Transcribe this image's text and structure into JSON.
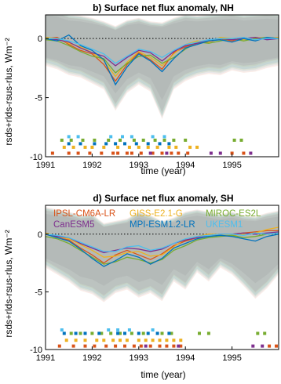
{
  "chart_data": [
    {
      "type": "line",
      "title": "b) Surface net flux anomaly, NH",
      "xlabel": "time (year)",
      "ylabel": "rsds+rlds-rsus-rlus, Wm⁻²",
      "xlim": [
        1991.0,
        1996.0
      ],
      "ylim": [
        -10,
        2
      ],
      "xticks": [
        "1991",
        "1992",
        "1993",
        "1994",
        "1995"
      ],
      "yticks": [
        "0",
        "-5",
        "-10"
      ],
      "zero_line": "dotted",
      "grid": false,
      "envelope": {
        "x": [
          1991.0,
          1991.25,
          1991.5,
          1991.75,
          1992.0,
          1992.25,
          1992.5,
          1992.75,
          1993.0,
          1993.25,
          1993.5,
          1993.75,
          1994.0,
          1994.25,
          1994.5,
          1994.75,
          1995.0,
          1995.25,
          1995.5,
          1995.75,
          1996.0
        ],
        "upper": [
          2.5,
          2.3,
          1.9,
          1.8,
          1.6,
          1.3,
          0.9,
          1.4,
          1.6,
          1.3,
          1.2,
          1.6,
          1.9,
          1.8,
          1.9,
          2.0,
          2.1,
          1.9,
          2.0,
          2.1,
          2.0
        ],
        "lower": [
          -2.0,
          -2.3,
          -2.8,
          -3.0,
          -3.5,
          -4.0,
          -5.8,
          -4.3,
          -3.6,
          -4.2,
          -6.5,
          -4.0,
          -3.3,
          -2.9,
          -2.7,
          -2.8,
          -2.4,
          -2.6,
          -2.5,
          -2.2,
          -2.0
        ]
      },
      "series": [
        {
          "name": "IPSL-CM6A-LR",
          "color": "#d95319",
          "x": [
            1991.0,
            1991.25,
            1991.5,
            1991.75,
            1992.0,
            1992.25,
            1992.5,
            1992.75,
            1993.0,
            1993.25,
            1993.5,
            1993.75,
            1994.0,
            1994.25,
            1994.5,
            1994.75,
            1995.0,
            1995.25,
            1995.5,
            1995.75,
            1996.0
          ],
          "y": [
            0.0,
            0.1,
            -0.5,
            -1.0,
            -1.3,
            -2.2,
            -3.6,
            -2.2,
            -1.2,
            -1.8,
            -2.6,
            -1.2,
            -0.7,
            -0.4,
            -0.3,
            0.0,
            -0.2,
            0.1,
            -0.1,
            0.0,
            0.1
          ]
        },
        {
          "name": "GISS-E2.1-G",
          "color": "#edb120",
          "x": [
            1991.0,
            1991.25,
            1991.5,
            1991.75,
            1992.0,
            1992.25,
            1992.5,
            1992.75,
            1993.0,
            1993.25,
            1993.5,
            1993.75,
            1994.0,
            1994.25,
            1994.5,
            1994.75,
            1995.0,
            1995.25,
            1995.5,
            1995.75,
            1996.0
          ],
          "y": [
            0.1,
            0.0,
            -0.4,
            -0.7,
            -1.2,
            -1.9,
            -3.2,
            -2.0,
            -1.1,
            -1.6,
            -2.3,
            -1.3,
            -0.5,
            -0.2,
            -0.3,
            0.1,
            0.0,
            -0.1,
            0.1,
            0.0,
            0.1
          ]
        },
        {
          "name": "MIROC-ES2L",
          "color": "#77ac30",
          "x": [
            1991.0,
            1991.25,
            1991.5,
            1991.75,
            1992.0,
            1992.25,
            1992.5,
            1992.75,
            1993.0,
            1993.25,
            1993.5,
            1993.75,
            1994.0,
            1994.25,
            1994.5,
            1994.75,
            1995.0,
            1995.25,
            1995.5,
            1995.75,
            1996.0
          ],
          "y": [
            -0.1,
            -0.2,
            -0.6,
            -1.1,
            -1.5,
            -1.7,
            -2.9,
            -2.1,
            -1.5,
            -1.4,
            -2.1,
            -1.6,
            -0.9,
            -0.3,
            -0.4,
            -0.2,
            0.0,
            -0.2,
            0.0,
            0.1,
            0.0
          ]
        },
        {
          "name": "CanESM5",
          "color": "#7e2f8e",
          "x": [
            1991.0,
            1991.25,
            1991.5,
            1991.75,
            1992.0,
            1992.25,
            1992.5,
            1992.75,
            1993.0,
            1993.25,
            1993.5,
            1993.75,
            1994.0,
            1994.25,
            1994.5,
            1994.75,
            1995.0,
            1995.25,
            1995.5,
            1995.75,
            1996.0
          ],
          "y": [
            0.0,
            -0.1,
            -0.3,
            -0.8,
            -1.2,
            -1.5,
            -2.3,
            -1.6,
            -1.0,
            -1.2,
            -1.9,
            -1.1,
            -0.6,
            -0.4,
            -0.1,
            0.0,
            -0.1,
            0.0,
            0.1,
            -0.1,
            0.0
          ]
        },
        {
          "name": "MPI-ESM1.2-LR",
          "color": "#0072bd",
          "x": [
            1991.0,
            1991.25,
            1991.5,
            1991.75,
            1992.0,
            1992.25,
            1992.5,
            1992.75,
            1993.0,
            1993.25,
            1993.5,
            1993.75,
            1994.0,
            1994.25,
            1994.5,
            1994.75,
            1995.0,
            1995.25,
            1995.5,
            1995.75,
            1996.0
          ],
          "y": [
            0.0,
            -0.2,
            0.3,
            -0.6,
            -1.0,
            -1.8,
            -3.9,
            -2.4,
            -1.3,
            -1.9,
            -2.8,
            -1.7,
            -0.8,
            -0.5,
            -0.2,
            -0.1,
            -0.3,
            0.0,
            -0.2,
            0.1,
            0.0
          ]
        },
        {
          "name": "UKESM1",
          "color": "#4dbeee",
          "x": [
            1991.0,
            1991.25,
            1991.5,
            1991.75,
            1992.0,
            1992.25,
            1992.5,
            1992.75,
            1993.0,
            1993.25,
            1993.5,
            1993.75,
            1994.0,
            1994.25,
            1994.5,
            1994.75,
            1995.0,
            1995.25,
            1995.5,
            1995.75,
            1996.0
          ],
          "y": [
            0.0,
            0.0,
            -0.2,
            -0.5,
            -0.9,
            -1.3,
            -2.1,
            -1.5,
            -0.9,
            -1.1,
            -1.6,
            -1.0,
            -0.5,
            -0.3,
            -0.1,
            0.0,
            0.0,
            0.1,
            -0.1,
            0.0,
            0.0
          ]
        }
      ],
      "markers": [
        {
          "model": "IPSL-CM6A-LR",
          "y": -9.7,
          "x": [
            1991.15,
            1991.5,
            1991.7,
            1991.95,
            1992.2,
            1992.45,
            1992.55,
            1992.75,
            1992.85,
            1993.05,
            1993.3,
            1993.5,
            1993.7,
            1993.85,
            1994.05,
            1995.0,
            1995.25
          ]
        },
        {
          "model": "GISS-E2.1-G",
          "y": -9.2,
          "x": [
            1991.4,
            1991.6,
            1991.85,
            1992.0,
            1992.25,
            1992.55,
            1992.8,
            1993.0,
            1993.2,
            1993.4,
            1993.65,
            1993.8,
            1994.1,
            1994.25
          ]
        },
        {
          "model": "MIROC-ES2L",
          "y": -8.6,
          "x": [
            1991.35,
            1991.55,
            1991.8,
            1992.05,
            1992.35,
            1992.6,
            1992.9,
            1993.1,
            1993.35,
            1993.55,
            1993.75,
            1994.0,
            1995.05,
            1995.2
          ]
        },
        {
          "model": "CanESM5",
          "y": -9.7,
          "x": [
            1993.25,
            1993.6,
            1994.55,
            1994.75,
            1995.4
          ]
        },
        {
          "model": "MPI-ESM1.2-LR",
          "y": -8.9,
          "x": [
            1991.5,
            1991.75,
            1992.05,
            1992.3,
            1992.5,
            1992.7,
            1992.95,
            1993.2,
            1993.45,
            1993.65
          ]
        },
        {
          "model": "UKESM1",
          "y": -8.3,
          "x": [
            1991.5,
            1991.7,
            1992.4,
            1992.65,
            1992.85,
            1993.3,
            1993.55
          ]
        }
      ]
    },
    {
      "type": "line",
      "title": "d) Surface net flux anomaly, SH",
      "xlabel": "time (year)",
      "ylabel": "rsds+rlds-rsus-rlus, Wm⁻²",
      "xlim": [
        1991.0,
        1996.0
      ],
      "ylim": [
        -10,
        2.5
      ],
      "xticks": [
        "1991",
        "1992",
        "1993",
        "1994",
        "1995"
      ],
      "yticks": [
        "0",
        "-5",
        "-10"
      ],
      "zero_line": "dotted",
      "grid": false,
      "legend": {
        "placement": "top",
        "columns": 3
      },
      "envelope": {
        "x": [
          1991.0,
          1991.25,
          1991.5,
          1991.75,
          1992.0,
          1992.25,
          1992.5,
          1992.75,
          1993.0,
          1993.25,
          1993.5,
          1993.75,
          1994.0,
          1994.25,
          1994.5,
          1994.75,
          1995.0,
          1995.25,
          1995.5,
          1995.75,
          1996.0
        ],
        "upper": [
          2.2,
          2.0,
          1.8,
          1.5,
          1.6,
          0.8,
          1.0,
          1.2,
          1.8,
          1.5,
          1.0,
          1.3,
          1.8,
          2.0,
          1.8,
          1.6,
          1.8,
          1.5,
          1.4,
          1.7,
          1.9
        ],
        "lower": [
          -2.6,
          -3.2,
          -3.8,
          -4.6,
          -4.9,
          -5.6,
          -4.8,
          -4.5,
          -5.2,
          -4.8,
          -5.5,
          -3.8,
          -4.5,
          -3.0,
          -3.8,
          -2.6,
          -3.2,
          -4.2,
          -5.3,
          -4.4,
          -3.2
        ]
      },
      "series": [
        {
          "name": "IPSL-CM6A-LR",
          "color": "#d95319",
          "x": [
            1991.0,
            1991.25,
            1991.5,
            1991.75,
            1992.0,
            1992.25,
            1992.5,
            1992.75,
            1993.0,
            1993.25,
            1993.5,
            1993.75,
            1994.0,
            1994.25,
            1994.5,
            1994.75,
            1995.0,
            1995.25,
            1995.5,
            1995.75,
            1996.0
          ],
          "y": [
            0.0,
            -0.3,
            -0.5,
            -1.2,
            -1.8,
            -2.5,
            -1.8,
            -1.4,
            -1.8,
            -2.2,
            -1.7,
            -1.0,
            -0.6,
            -0.3,
            0.0,
            -0.1,
            0.0,
            0.1,
            0.2,
            0.3,
            0.3
          ]
        },
        {
          "name": "GISS-E2.1-G",
          "color": "#edb120",
          "x": [
            1991.0,
            1991.25,
            1991.5,
            1991.75,
            1992.0,
            1992.25,
            1992.5,
            1992.75,
            1993.0,
            1993.25,
            1993.5,
            1993.75,
            1994.0,
            1994.25,
            1994.5,
            1994.75,
            1995.0,
            1995.25,
            1995.5,
            1995.75,
            1996.0
          ],
          "y": [
            0.1,
            -0.2,
            -0.4,
            -0.9,
            -1.4,
            -2.0,
            -1.9,
            -1.6,
            -1.5,
            -1.9,
            -1.8,
            -1.1,
            -0.4,
            -0.2,
            0.0,
            0.0,
            -0.1,
            0.0,
            0.1,
            0.4,
            0.6
          ]
        },
        {
          "name": "MIROC-ES2L",
          "color": "#77ac30",
          "x": [
            1991.0,
            1991.25,
            1991.5,
            1991.75,
            1992.0,
            1992.25,
            1992.5,
            1992.75,
            1993.0,
            1993.25,
            1993.5,
            1993.75,
            1994.0,
            1994.25,
            1994.5,
            1994.75,
            1995.0,
            1995.25,
            1995.5,
            1995.75,
            1996.0
          ],
          "y": [
            -0.2,
            -0.4,
            -0.8,
            -1.4,
            -2.0,
            -2.6,
            -2.4,
            -2.0,
            -2.2,
            -2.5,
            -2.2,
            -1.4,
            -1.0,
            -0.5,
            -0.3,
            -0.2,
            -0.1,
            -0.3,
            -0.2,
            0.0,
            0.1
          ]
        },
        {
          "name": "CanESM5",
          "color": "#7e2f8e",
          "x": [
            1991.0,
            1991.25,
            1991.5,
            1991.75,
            1992.0,
            1992.25,
            1992.5,
            1992.75,
            1993.0,
            1993.25,
            1993.5,
            1993.75,
            1994.0,
            1994.25,
            1994.5,
            1994.75,
            1995.0,
            1995.25,
            1995.5,
            1995.75,
            1996.0
          ],
          "y": [
            0.0,
            -0.2,
            -0.3,
            -0.8,
            -1.2,
            -1.6,
            -1.4,
            -1.2,
            -1.3,
            -1.5,
            -1.3,
            -0.8,
            -0.5,
            -0.3,
            -0.1,
            0.0,
            0.0,
            0.1,
            0.0,
            0.1,
            0.2
          ]
        },
        {
          "name": "MPI-ESM1.2-LR",
          "color": "#0072bd",
          "x": [
            1991.0,
            1991.25,
            1991.5,
            1991.75,
            1992.0,
            1992.25,
            1992.5,
            1992.75,
            1993.0,
            1993.25,
            1993.5,
            1993.75,
            1994.0,
            1994.25,
            1994.5,
            1994.75,
            1995.0,
            1995.25,
            1995.5,
            1995.75,
            1996.0
          ],
          "y": [
            0.0,
            -0.3,
            -0.6,
            -1.3,
            -2.1,
            -2.8,
            -2.3,
            -1.7,
            -2.0,
            -2.6,
            -2.1,
            -1.2,
            -0.8,
            -0.4,
            -0.2,
            -0.1,
            -0.2,
            -0.4,
            -0.6,
            -0.2,
            0.0
          ]
        },
        {
          "name": "UKESM1",
          "color": "#4dbeee",
          "x": [
            1991.0,
            1991.25,
            1991.5,
            1991.75,
            1992.0,
            1992.25,
            1992.5,
            1992.75,
            1993.0,
            1993.25,
            1993.5,
            1993.75,
            1994.0,
            1994.25,
            1994.5,
            1994.75,
            1995.0,
            1995.25,
            1995.5,
            1995.75,
            1996.0
          ],
          "y": [
            0.0,
            -0.1,
            -0.3,
            -0.7,
            -1.1,
            -1.5,
            -1.5,
            -1.1,
            -1.0,
            -1.4,
            -1.2,
            -0.8,
            -0.4,
            -0.2,
            -0.1,
            0.0,
            0.0,
            -0.1,
            0.1,
            0.0,
            0.1
          ]
        }
      ],
      "markers": [
        {
          "model": "IPSL-CM6A-LR",
          "y": -9.7,
          "x": [
            1991.3,
            1991.6,
            1991.85,
            1992.05,
            1992.3,
            1992.5,
            1992.7,
            1992.9,
            1993.05,
            1993.25,
            1993.45,
            1993.6,
            1993.75,
            1993.9,
            1995.8,
            1995.95
          ]
        },
        {
          "model": "GISS-E2.1-G",
          "y": -9.2,
          "x": [
            1991.45,
            1991.65,
            1991.85,
            1992.1,
            1992.25,
            1992.45,
            1992.6,
            1992.75,
            1993.0,
            1993.15,
            1993.3,
            1993.45,
            1993.6,
            1993.75,
            1993.9
          ]
        },
        {
          "model": "MIROC-ES2L",
          "y": -8.6,
          "x": [
            1991.55,
            1991.75,
            1992.0,
            1992.2,
            1992.4,
            1992.6,
            1992.85,
            1993.1,
            1993.5,
            1993.7,
            1994.3,
            1994.5,
            1995.55,
            1995.7
          ]
        },
        {
          "model": "CanESM5",
          "y": -9.7,
          "x": [
            1993.15,
            1993.85,
            1995.45,
            1995.65
          ]
        },
        {
          "model": "MPI-ESM1.2-LR",
          "y": -8.6,
          "x": [
            1991.4,
            1991.65,
            1991.85,
            1992.15,
            1992.55,
            1992.7,
            1993.0,
            1993.2,
            1993.4,
            1993.65
          ]
        },
        {
          "model": "UKESM1",
          "y": -8.3,
          "x": [
            1991.35,
            1992.35,
            1992.55,
            1992.8,
            1993.3
          ]
        }
      ]
    }
  ]
}
